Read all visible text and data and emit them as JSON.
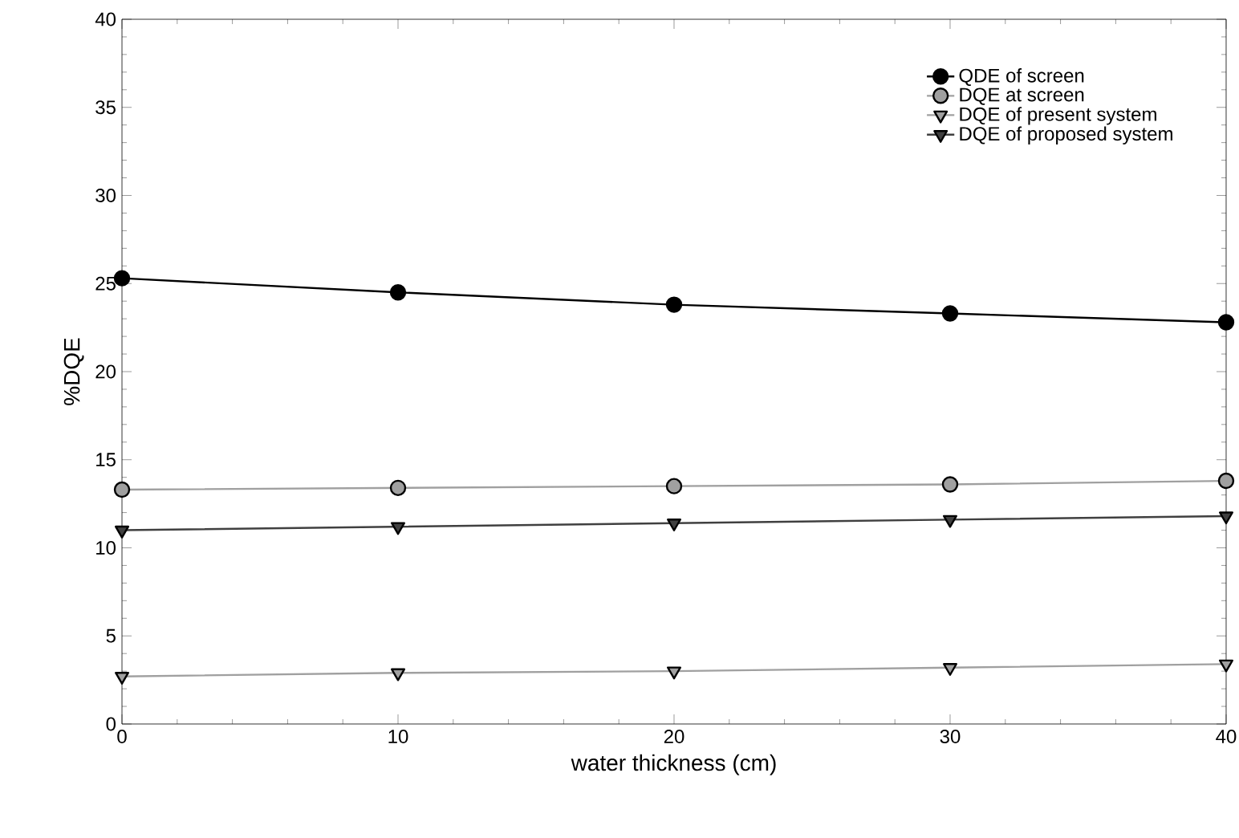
{
  "chart_data": {
    "type": "line",
    "xlabel": "water thickness (cm)",
    "ylabel": "%DQE",
    "x": [
      0,
      10,
      20,
      30,
      40
    ],
    "xlim": [
      0,
      40
    ],
    "ylim": [
      0,
      40
    ],
    "xticks": [
      0,
      10,
      20,
      30,
      40
    ],
    "yticks": [
      0,
      5,
      10,
      15,
      20,
      25,
      30,
      35,
      40
    ],
    "grid": false,
    "legend": "top right",
    "series": [
      {
        "name": "QDE of screen",
        "color": "#000000",
        "marker": "circle",
        "values": [
          25.3,
          24.5,
          23.8,
          23.3,
          22.8
        ]
      },
      {
        "name": "DQE at screen",
        "color": "#a0a0a0",
        "marker": "circle",
        "values": [
          13.3,
          13.4,
          13.5,
          13.6,
          13.8
        ]
      },
      {
        "name": "DQE of present system",
        "color": "#a0a0a0",
        "marker": "triangle",
        "values": [
          2.7,
          2.9,
          3.0,
          3.2,
          3.4
        ]
      },
      {
        "name": "DQE of proposed system",
        "color": "#404040",
        "marker": "triangle",
        "values": [
          11.0,
          11.2,
          11.4,
          11.6,
          11.8
        ]
      }
    ]
  }
}
